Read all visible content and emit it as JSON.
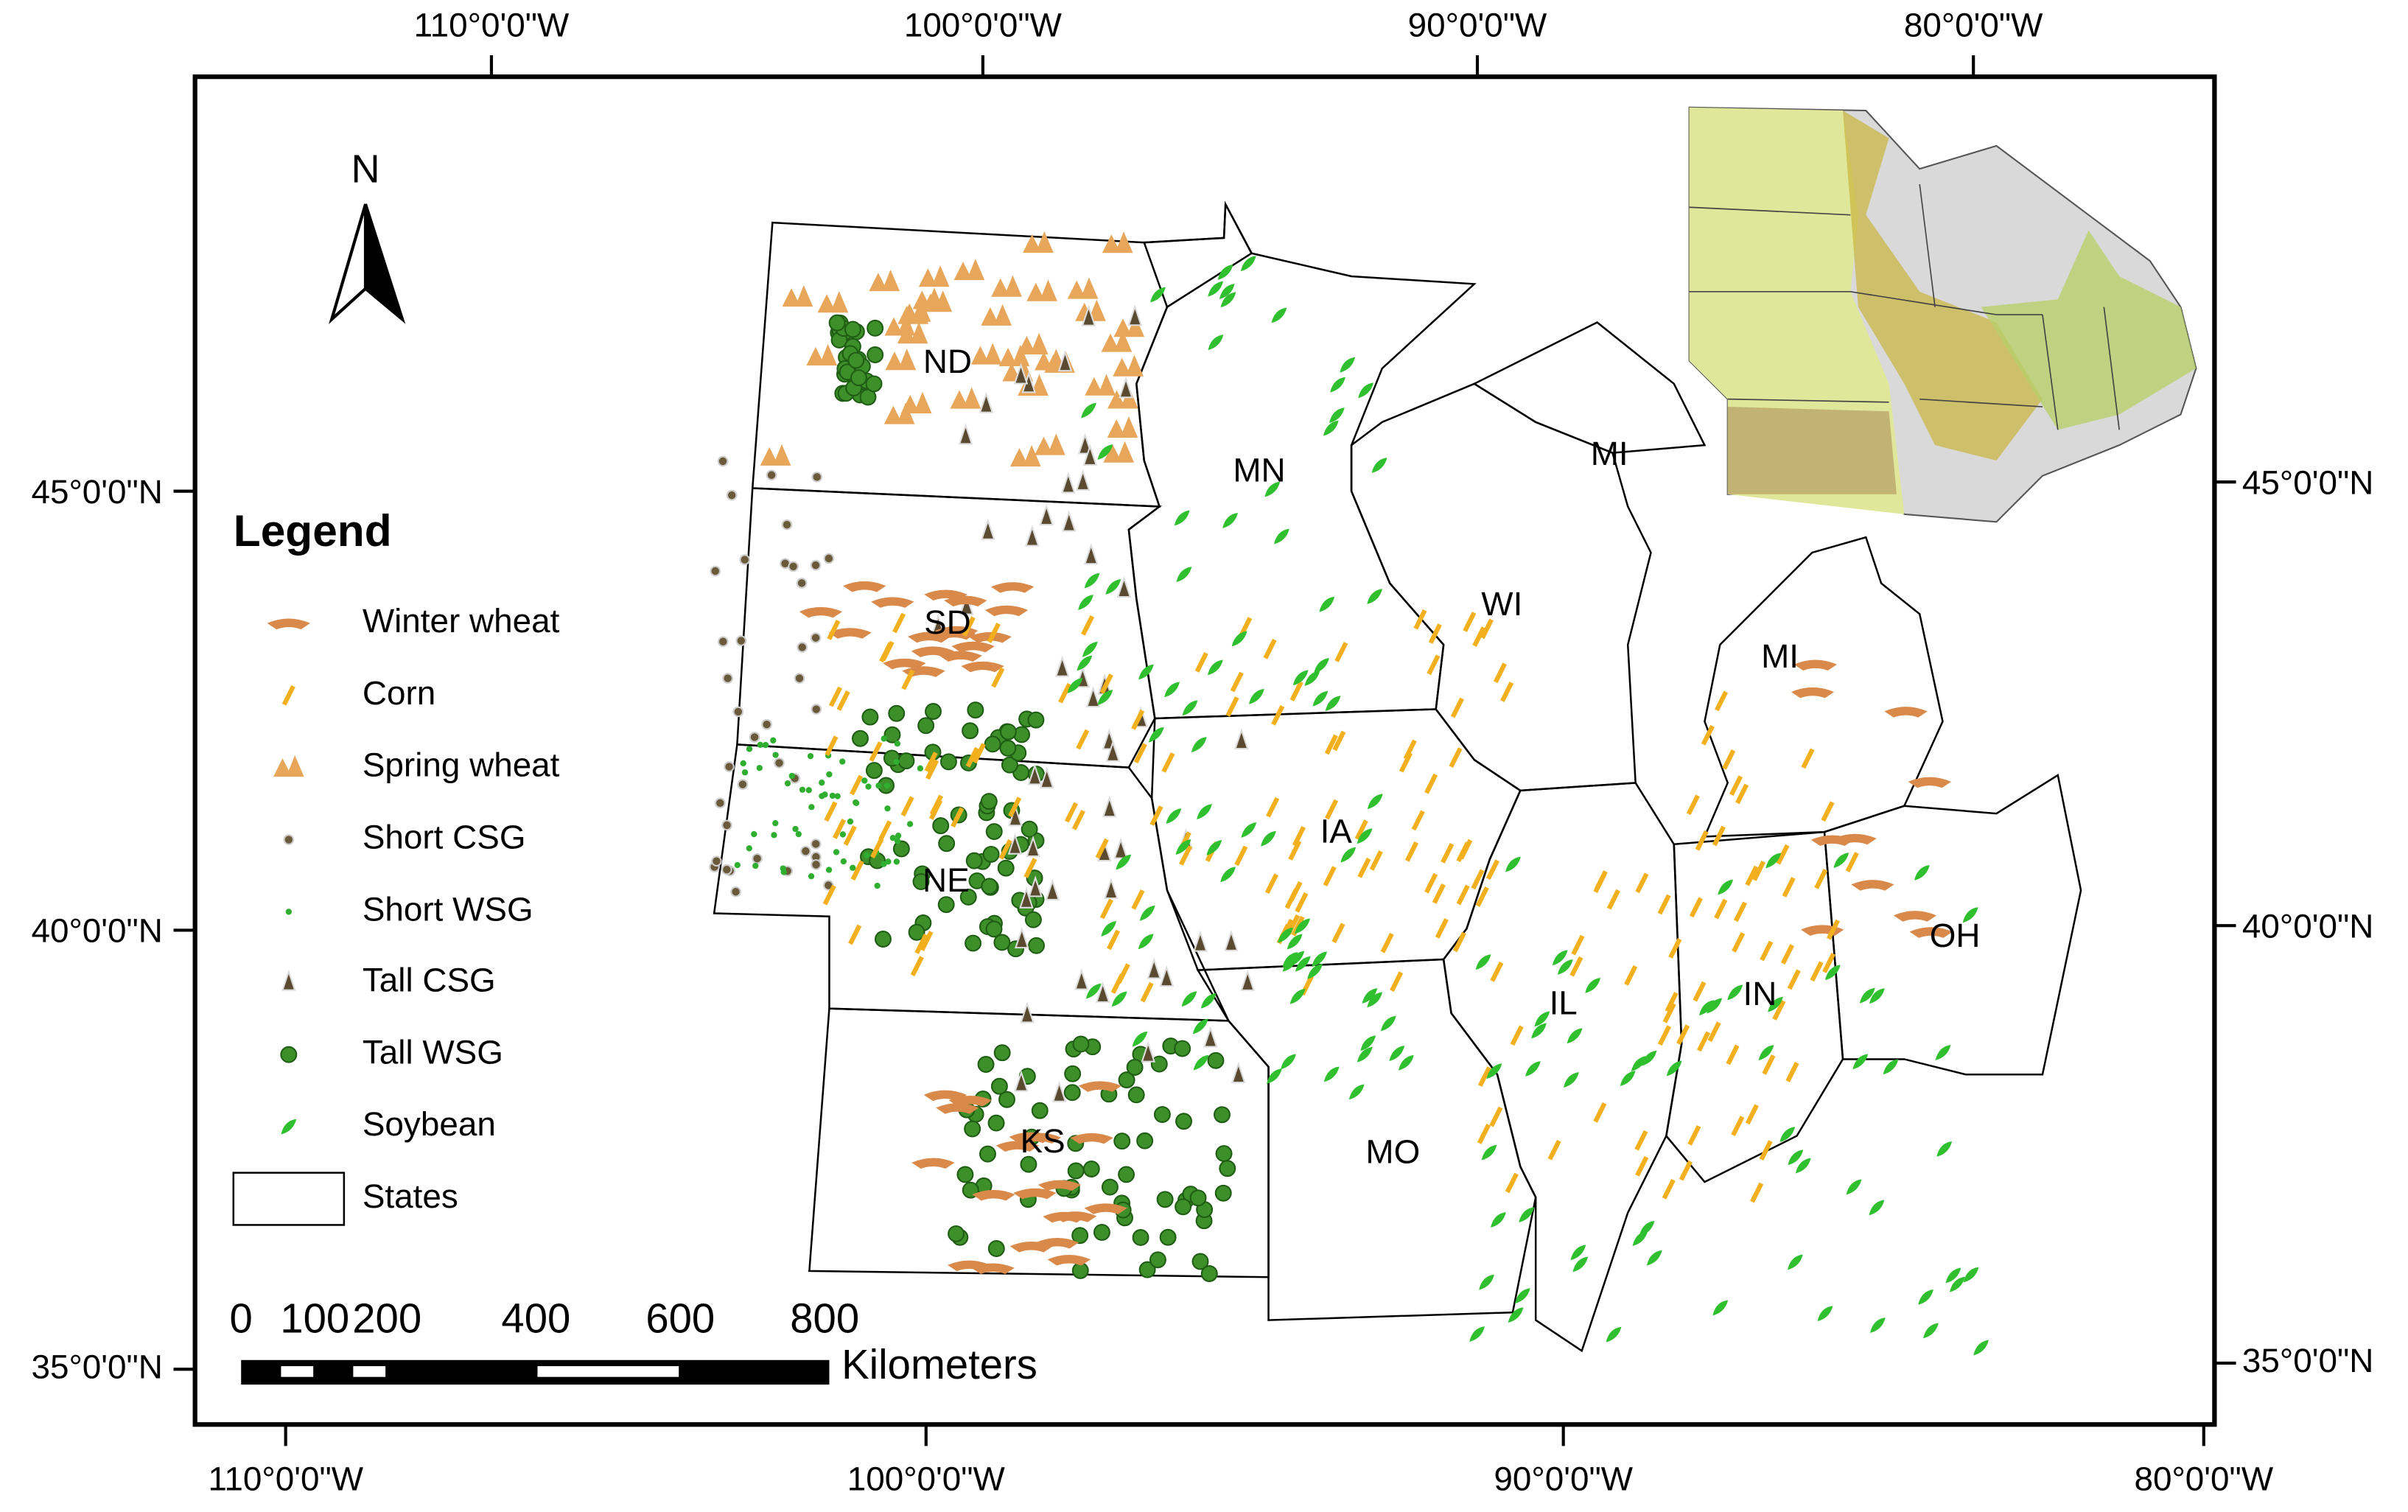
{
  "graticule": {
    "top": [
      "110°0'0\"W",
      "100°0'0\"W",
      "90°0'0\"W",
      "80°0'0\"W"
    ],
    "bottom": [
      "110°0'0\"W",
      "100°0'0\"W",
      "90°0'0\"W",
      "80°0'0\"W"
    ],
    "left": [
      "45°0'0\"N",
      "40°0'0\"N",
      "35°0'0\"N"
    ],
    "right": [
      "45°0'0\"N",
      "40°0'0\"N",
      "35°0'0\"N"
    ]
  },
  "north": "N",
  "states": [
    "ND",
    "SD",
    "NE",
    "KS",
    "MN",
    "IA",
    "MO",
    "WI",
    "MI",
    "MI",
    "IL",
    "IN",
    "OH"
  ],
  "legend": {
    "title": "Legend",
    "items": [
      "Winter wheat",
      "Corn",
      "Spring wheat",
      "Short CSG",
      "Short WSG",
      "Tall CSG",
      "Tall WSG",
      "Soybean",
      "States"
    ]
  },
  "scale_bar": {
    "ticks": [
      "0",
      "100",
      "200",
      "400",
      "600",
      "800"
    ],
    "unit": "Kilometers"
  }
}
